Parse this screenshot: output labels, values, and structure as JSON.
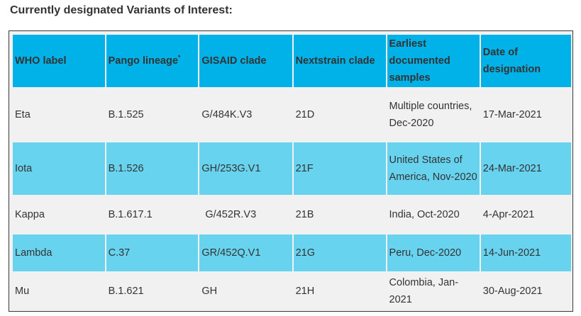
{
  "title": "Currently designated Variants of Interest:",
  "table": {
    "headers": {
      "who_label": "WHO label",
      "pango_lineage": "Pango lineage",
      "pango_marker": "*",
      "gisaid_clade": "GISAID clade",
      "nextstrain_clade": "Nextstrain clade",
      "earliest_samples": "Earliest documented samples",
      "date_designation": "Date of designation"
    },
    "rows": [
      {
        "who": "Eta",
        "pango": "B.1.525",
        "gisaid": "G/484K.V3",
        "nextstrain": "21D",
        "earliest": "Multiple countries, Dec-2020",
        "date": "17-Mar-2021"
      },
      {
        "who": "Iota",
        "pango": "B.1.526",
        "gisaid": "GH/253G.V1",
        "nextstrain": "21F",
        "earliest": "United States of America, Nov-2020",
        "date": "24-Mar-2021"
      },
      {
        "who": "Kappa",
        "pango": "B.1.617.1",
        "gisaid": "G/452R.V3",
        "nextstrain": "21B",
        "earliest": "India, Oct-2020",
        "date": "4-Apr-2021"
      },
      {
        "who": "Lambda",
        "pango": "C.37",
        "gisaid": "GR/452Q.V1",
        "nextstrain": "21G",
        "earliest": "Peru, Dec-2020",
        "date": "14-Jun-2021"
      },
      {
        "who": "Mu",
        "pango": "B.1.621",
        "gisaid": "GH",
        "nextstrain": "21H",
        "earliest": "Colombia, Jan-2021",
        "date": "30-Aug-2021"
      }
    ]
  },
  "colors": {
    "header_bg": "#00b2e8",
    "row_alt_bg": "#68d3ee",
    "row_bg": "#f1f1f1"
  }
}
